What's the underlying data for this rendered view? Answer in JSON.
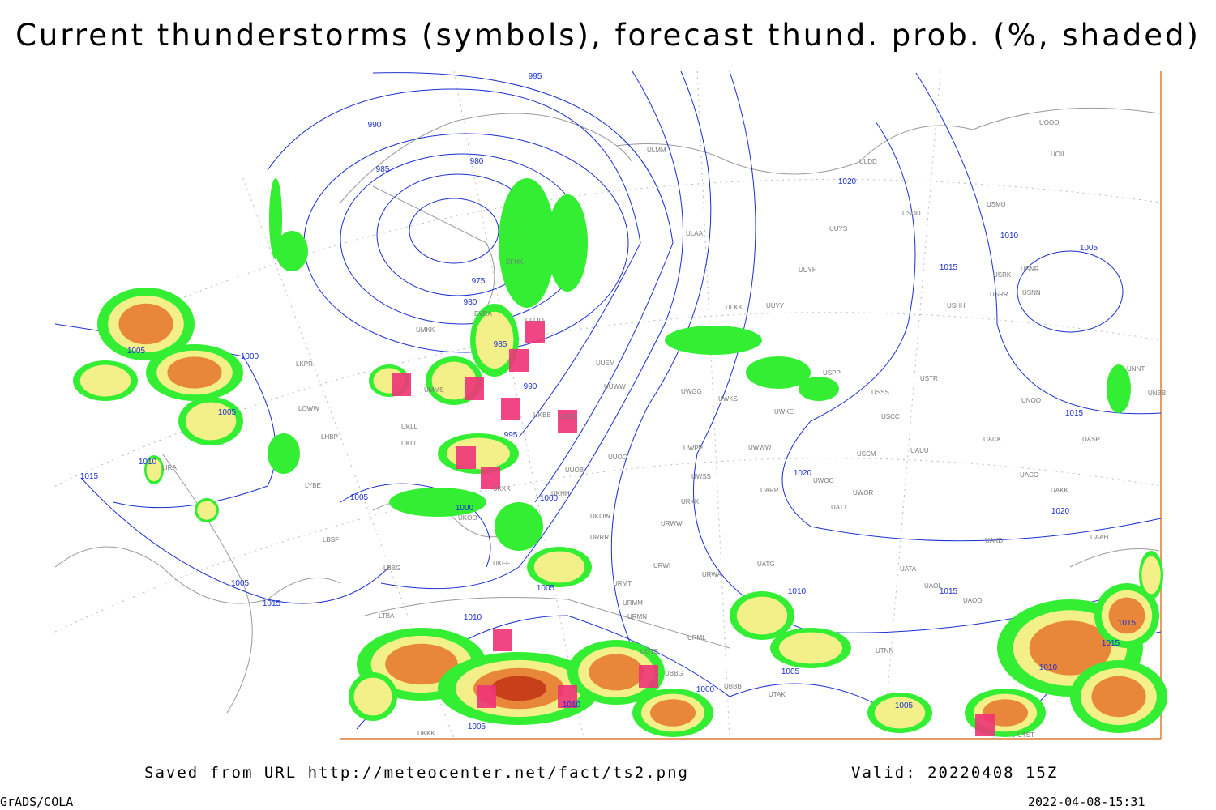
{
  "title": "Current thunderstorms (symbols), forecast thund. prob. (%, shaded)",
  "footer": {
    "source": "Saved from URL http://meteocenter.net/fact/ts2.png",
    "valid": "Valid: 20220408 15Z",
    "software": "GrADS/COLA",
    "timestamp": "2022-04-08-15:31"
  },
  "isobar_labels": [
    "995",
    "990",
    "985",
    "980",
    "975",
    "980",
    "985",
    "990",
    "995",
    "1000",
    "1005",
    "1000",
    "1005",
    "1010",
    "1015",
    "1005",
    "1000",
    "1005",
    "1015",
    "1010",
    "1005",
    "1000",
    "1010",
    "1005",
    "1020",
    "1015",
    "1010",
    "1005",
    "1015",
    "1020",
    "1010",
    "1015",
    "1020",
    "1005",
    "1015",
    "1015",
    "1010",
    "1005"
  ],
  "stations": [
    "EFHK",
    "ULMM",
    "ULAA",
    "ULOO",
    "UMKK",
    "EVRA",
    "UMMS",
    "UKLL",
    "UKLI",
    "UKBB",
    "UUEE",
    "UUEM",
    "UUWW",
    "UUOO",
    "UUOB",
    "UKHH",
    "UKKK",
    "UKOO",
    "UKOW",
    "URRR",
    "UKFF",
    "URKK",
    "URWW",
    "URWI",
    "URWA",
    "URMT",
    "URMM",
    "URMN",
    "URML",
    "UGTB",
    "UBBG",
    "UBBB",
    "UTAK",
    "UATG",
    "UATA",
    "UAOL",
    "UAOO",
    "UTNN",
    "UAKD",
    "UAKK",
    "UACC",
    "UACK",
    "UAUU",
    "USCM",
    "USCC",
    "USSS",
    "USTR",
    "USPP",
    "UWKE",
    "UWKS",
    "UWGG",
    "UWPP",
    "UWSS",
    "UWWW",
    "UWOO",
    "UWOR",
    "UATT",
    "UARR",
    "UUYY",
    "ULKK",
    "UUYH",
    "UUYS",
    "ULDD",
    "USDD",
    "USMU",
    "USRK",
    "USNR",
    "USRR",
    "USNN",
    "USHH",
    "UOOO",
    "UOII",
    "UNNT",
    "UNBB",
    "UNOO",
    "UASP",
    "UAAH",
    "LKPR",
    "LOWW",
    "LHBP",
    "LYBE",
    "LBSF",
    "LTBA",
    "LBBG",
    "LIRA",
    "UKKK",
    "UTST"
  ]
}
